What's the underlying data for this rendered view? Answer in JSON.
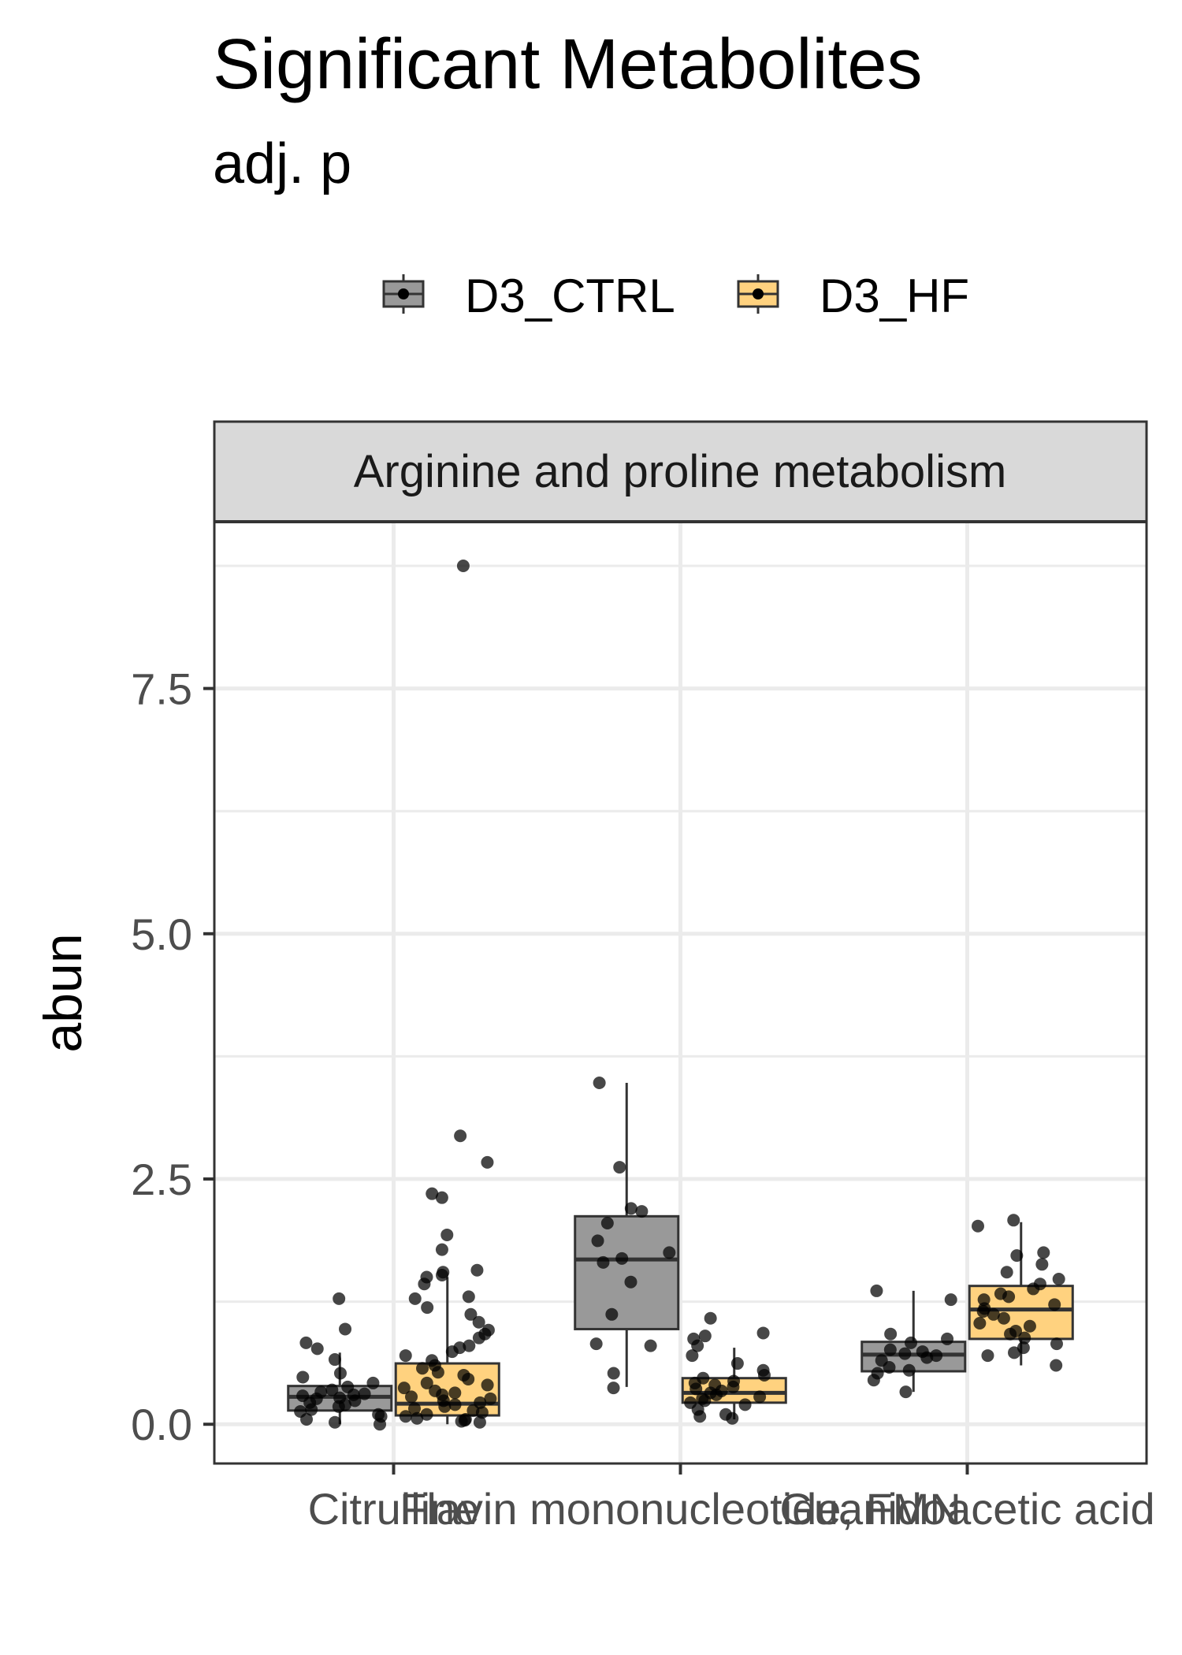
{
  "title": "Significant Metabolites",
  "subtitle": "adj. p",
  "facet": "Arginine and proline metabolism",
  "legend": [
    {
      "name": "D3_CTRL",
      "color": "#999999"
    },
    {
      "name": "D3_HF",
      "color": "#FFD27F"
    }
  ],
  "chart_data": {
    "type": "box",
    "title": "Significant Metabolites",
    "subtitle": "adj. p",
    "facet": "Arginine and proline metabolism",
    "xlabel": "",
    "ylabel": "abun",
    "ylim": [
      -0.4,
      9.2
    ],
    "yticks": [
      0.0,
      2.5,
      5.0,
      7.5
    ],
    "yticklabels": [
      "0.0",
      "2.5",
      "5.0",
      "7.5"
    ],
    "categories": [
      "Citrulline",
      "Flavin mononucleotide, FMN",
      "Guanidoacetic acid"
    ],
    "grid": true,
    "legend_position": "top",
    "series": [
      {
        "name": "D3_CTRL",
        "color": "#999999",
        "boxes": [
          {
            "q1": 0.14,
            "median": 0.28,
            "q3": 0.39,
            "whisker_low": 0.0,
            "whisker_high": 0.73,
            "points": [
              1.28,
              0.97,
              0.83,
              0.77,
              0.66,
              0.52,
              0.48,
              0.42,
              0.38,
              0.35,
              0.33,
              0.31,
              0.3,
              0.29,
              0.27,
              0.26,
              0.24,
              0.22,
              0.2,
              0.18,
              0.15,
              0.13,
              0.1,
              0.08,
              0.05,
              0.02,
              0.0
            ]
          },
          {
            "q1": 0.97,
            "median": 1.68,
            "q3": 2.12,
            "whisker_low": 0.38,
            "whisker_high": 3.48,
            "points": [
              3.48,
              2.62,
              2.2,
              2.17,
              2.05,
              1.87,
              1.75,
              1.69,
              1.65,
              1.45,
              1.12,
              0.82,
              0.8,
              0.52,
              0.37
            ]
          },
          {
            "q1": 0.54,
            "median": 0.71,
            "q3": 0.84,
            "whisker_low": 0.33,
            "whisker_high": 1.36,
            "points": [
              1.36,
              1.27,
              0.92,
              0.87,
              0.83,
              0.76,
              0.74,
              0.72,
              0.7,
              0.68,
              0.65,
              0.58,
              0.55,
              0.52,
              0.45,
              0.33
            ]
          }
        ]
      },
      {
        "name": "D3_HF",
        "color": "#FFD27F",
        "boxes": [
          {
            "q1": 0.09,
            "median": 0.21,
            "q3": 0.62,
            "whisker_low": 0.0,
            "whisker_high": 1.5,
            "points": [
              8.75,
              2.94,
              2.67,
              2.35,
              2.31,
              1.93,
              1.78,
              1.57,
              1.55,
              1.52,
              1.5,
              1.43,
              1.3,
              1.28,
              1.19,
              1.12,
              1.04,
              0.96,
              0.92,
              0.88,
              0.8,
              0.78,
              0.74,
              0.7,
              0.65,
              0.6,
              0.57,
              0.53,
              0.5,
              0.46,
              0.42,
              0.4,
              0.37,
              0.34,
              0.32,
              0.3,
              0.28,
              0.26,
              0.24,
              0.22,
              0.2,
              0.18,
              0.16,
              0.14,
              0.12,
              0.1,
              0.08,
              0.06,
              0.05,
              0.04,
              0.03,
              0.02
            ]
          },
          {
            "q1": 0.22,
            "median": 0.32,
            "q3": 0.47,
            "whisker_low": 0.05,
            "whisker_high": 0.78,
            "points": [
              1.08,
              0.93,
              0.9,
              0.87,
              0.8,
              0.7,
              0.62,
              0.55,
              0.5,
              0.47,
              0.44,
              0.42,
              0.4,
              0.38,
              0.36,
              0.34,
              0.32,
              0.3,
              0.28,
              0.26,
              0.24,
              0.22,
              0.2,
              0.15,
              0.1,
              0.08,
              0.06
            ]
          },
          {
            "q1": 0.87,
            "median": 1.17,
            "q3": 1.41,
            "whisker_low": 0.6,
            "whisker_high": 2.06,
            "points": [
              2.08,
              2.02,
              1.75,
              1.72,
              1.63,
              1.55,
              1.48,
              1.43,
              1.38,
              1.33,
              1.3,
              1.27,
              1.22,
              1.18,
              1.15,
              1.12,
              1.08,
              1.03,
              1.0,
              0.95,
              0.92,
              0.88,
              0.82,
              0.78,
              0.73,
              0.7,
              0.6
            ]
          }
        ]
      }
    ]
  }
}
